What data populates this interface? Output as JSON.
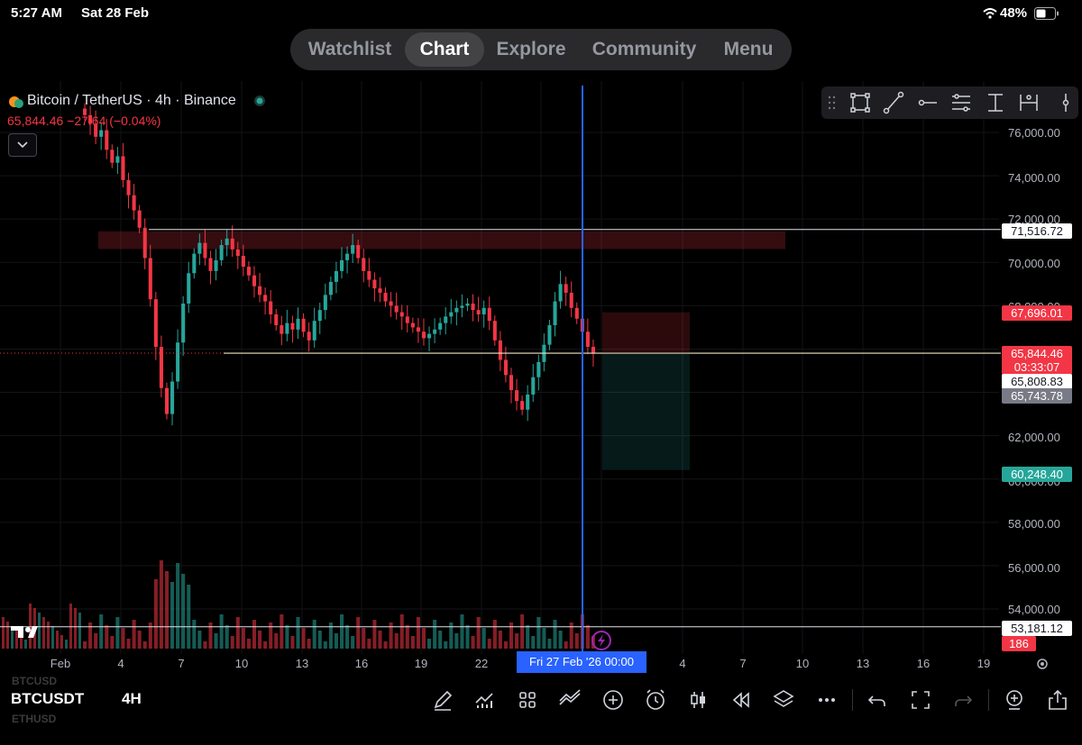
{
  "status_bar": {
    "time": "5:27 AM",
    "date": "Sat 28 Feb",
    "battery_percent": "48%"
  },
  "nav": {
    "items": [
      {
        "label": "Watchlist",
        "active": false
      },
      {
        "label": "Chart",
        "active": true
      },
      {
        "label": "Explore",
        "active": false
      },
      {
        "label": "Community",
        "active": false
      },
      {
        "label": "Menu",
        "active": false
      }
    ]
  },
  "symbol": {
    "title": "Bitcoin / TetherUS · 4h · Binance",
    "price_line": "65,844.46  −27.64 (−0.04%)"
  },
  "colors": {
    "up": "#26a69a",
    "down": "#f23645",
    "accent": "#2962ff"
  },
  "chart_data": {
    "type": "candlestick",
    "yaxis": {
      "ticks": [
        "76,000.00",
        "74,000.00",
        "72,000.00",
        "70,000.00",
        "68,000.00",
        "62,000.00",
        "60,000.00",
        "58,000.00",
        "56,000.00",
        "54,000.00"
      ],
      "range": [
        52000,
        77500
      ]
    },
    "xaxis": {
      "ticks": [
        "Feb",
        "4",
        "7",
        "10",
        "13",
        "16",
        "19",
        "22",
        "4",
        "7",
        "10",
        "13",
        "16",
        "19"
      ]
    },
    "price_tags": [
      {
        "value": "71,516.72",
        "style": "white"
      },
      {
        "value": "67,696.01",
        "style": "red"
      },
      {
        "value": "65,844.46",
        "style": "red"
      },
      {
        "value": "03:33:07",
        "style": "red"
      },
      {
        "value": "65,808.83",
        "style": "white"
      },
      {
        "value": "65,743.78",
        "style": "gray"
      },
      {
        "value": "60,248.40",
        "style": "green"
      },
      {
        "value": "53,181.12",
        "style": "white"
      },
      {
        "value": "186",
        "style": "red"
      }
    ],
    "crosshair_date": "Fri 27 Feb '26   00:00",
    "resistance_zone": [
      70700,
      71516.72
    ],
    "horizontal_lines": [
      71516.72,
      65808.83,
      53181.12
    ],
    "position": {
      "entry": 65808.83,
      "stop": 67696.01,
      "target": 60248.4
    },
    "close_series": [
      76800,
      76400,
      75800,
      76100,
      75200,
      74600,
      74900,
      73800,
      73100,
      72400,
      71600,
      70200,
      68300,
      66100,
      64200,
      63000,
      64500,
      66300,
      68100,
      69500,
      70400,
      70900,
      70200,
      69600,
      70100,
      70800,
      71100,
      70600,
      70300,
      69800,
      69400,
      68900,
      68500,
      68200,
      67600,
      67100,
      66700,
      67200,
      66900,
      67400,
      66800,
      66400,
      67300,
      67800,
      68500,
      69100,
      69600,
      70100,
      70400,
      70800,
      70200,
      69600,
      69200,
      68800,
      68600,
      68200,
      68000,
      67700,
      67500,
      67200,
      67000,
      66800,
      66500,
      66700,
      66900,
      67200,
      67500,
      67700,
      67900,
      68000,
      68100,
      67800,
      67600,
      67900,
      67300,
      66400,
      65500,
      64800,
      64100,
      63600,
      63200,
      63900,
      64700,
      65400,
      66200,
      67100,
      68200,
      69000,
      68600,
      67900,
      67400,
      66800,
      66100,
      65800
    ]
  },
  "bottom_bar": {
    "symbol": "BTCUSDT",
    "interval": "4H",
    "faded_above": "BTCUSD",
    "faded_below": "ETHUSD"
  },
  "icons": {
    "toolbar": [
      "drag-handle-icon",
      "rectangle-icon",
      "trend-line-icon",
      "ray-icon",
      "parallel-channel-icon",
      "vertical-measure-icon",
      "horizontal-measure-icon",
      "more-tools-icon"
    ],
    "bottom": [
      "brush-icon",
      "indicators-icon",
      "layout-icon",
      "compare-icon",
      "add-icon",
      "alert-icon",
      "candle-type-icon",
      "replay-icon",
      "layers-icon",
      "more-icon",
      "undo-icon",
      "fullscreen-icon",
      "redo-icon",
      "zoom-icon",
      "share-icon"
    ]
  }
}
